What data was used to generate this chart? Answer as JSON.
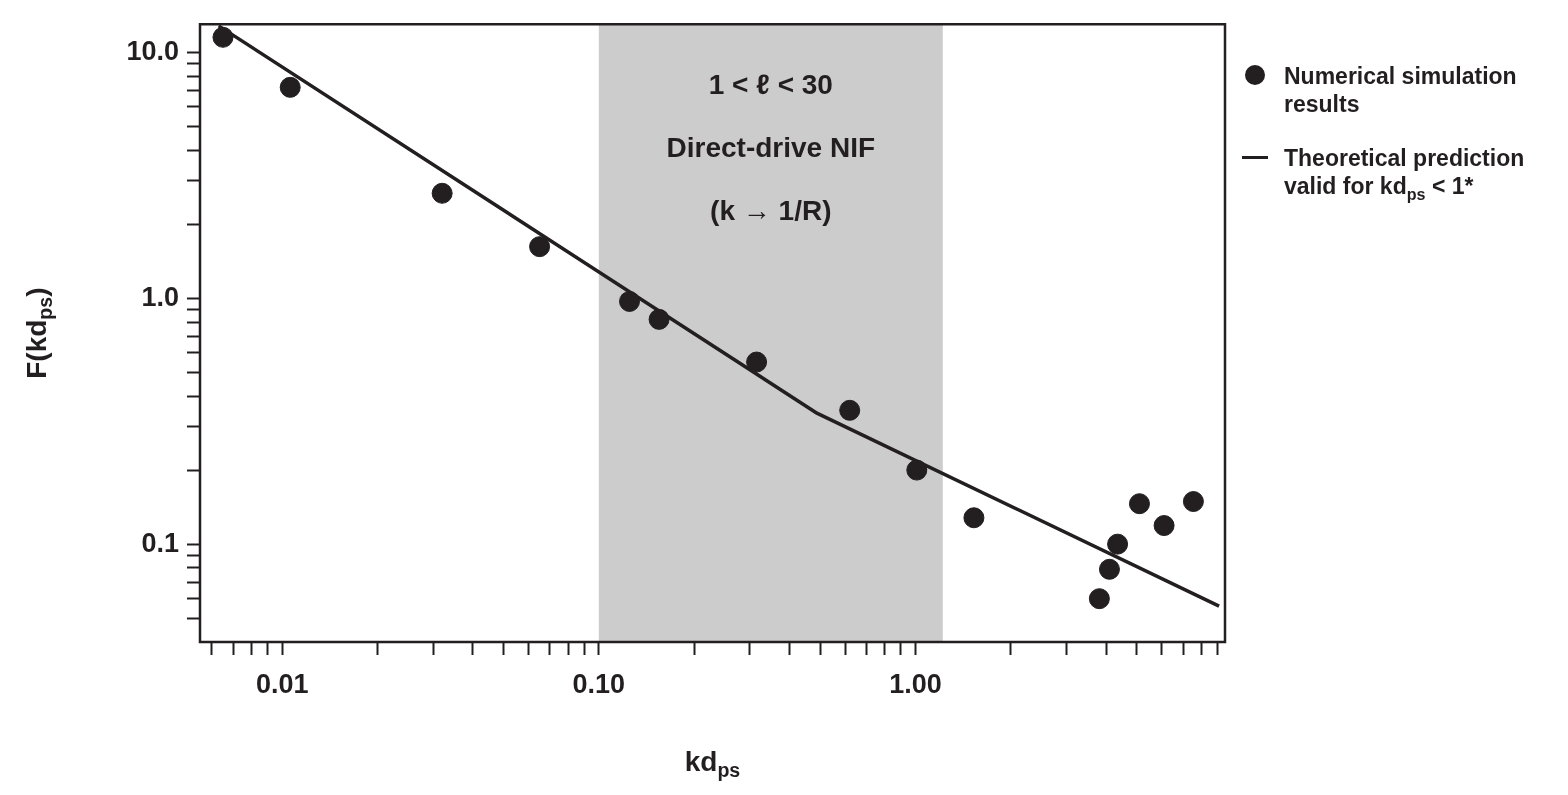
{
  "chart_data": {
    "type": "scatter",
    "xlabel": "kd$_{ps}$",
    "ylabel": "F(kd$_{ps}$)",
    "log": "xy",
    "xlim": [
      0.0055,
      9.5
    ],
    "ylim": [
      0.04,
      13
    ],
    "xticks": [
      {
        "value": 0.006,
        "label": null
      },
      {
        "value": 0.007,
        "label": null
      },
      {
        "value": 0.008,
        "label": null
      },
      {
        "value": 0.009,
        "label": null
      },
      0.01,
      {
        "value": 0.02,
        "label": null
      },
      {
        "value": 0.03,
        "label": null
      },
      {
        "value": 0.04,
        "label": null
      },
      {
        "value": 0.05,
        "label": null
      },
      {
        "value": 0.06,
        "label": null
      },
      {
        "value": 0.07,
        "label": null
      },
      {
        "value": 0.08,
        "label": null
      },
      {
        "value": 0.09,
        "label": null
      },
      {
        "value": 0.1,
        "label": "0.10"
      },
      {
        "value": 0.2,
        "label": null
      },
      {
        "value": 0.3,
        "label": null
      },
      {
        "value": 0.4,
        "label": null
      },
      {
        "value": 0.5,
        "label": null
      },
      {
        "value": 0.6,
        "label": null
      },
      {
        "value": 0.7,
        "label": null
      },
      {
        "value": 0.8,
        "label": null
      },
      {
        "value": 0.9,
        "label": null
      },
      {
        "value": 1,
        "label": "1.00"
      },
      {
        "value": 2,
        "label": null
      },
      {
        "value": 3,
        "label": null
      },
      {
        "value": 4,
        "label": null
      },
      {
        "value": 5,
        "label": null
      },
      {
        "value": 6,
        "label": null
      },
      {
        "value": 7,
        "label": null
      },
      {
        "value": 8,
        "label": null
      },
      {
        "value": 9,
        "label": null
      }
    ],
    "yticks": [
      {
        "value": 0.05,
        "label": null
      },
      {
        "value": 0.06,
        "label": null
      },
      {
        "value": 0.07,
        "label": null
      },
      {
        "value": 0.08,
        "label": null
      },
      {
        "value": 0.09,
        "label": null
      },
      0.1,
      {
        "value": 0.2,
        "label": null
      },
      {
        "value": 0.3,
        "label": null
      },
      {
        "value": 0.4,
        "label": null
      },
      {
        "value": 0.5,
        "label": null
      },
      {
        "value": 0.6,
        "label": null
      },
      {
        "value": 0.7,
        "label": null
      },
      {
        "value": 0.8,
        "label": null
      },
      {
        "value": 0.9,
        "label": null
      },
      {
        "value": 1,
        "label": "1.0"
      },
      {
        "value": 2,
        "label": null
      },
      {
        "value": 3,
        "label": null
      },
      {
        "value": 4,
        "label": null
      },
      {
        "value": 5,
        "label": null
      },
      {
        "value": 6,
        "label": null
      },
      {
        "value": 7,
        "label": null
      },
      {
        "value": 8,
        "label": null
      },
      {
        "value": 9,
        "label": null
      },
      {
        "value": 10,
        "label": "10.0"
      }
    ],
    "legend": "right",
    "grid": false,
    "series": [
      {
        "name": "Numerical simulation results",
        "type": "scatter",
        "marker": "circle",
        "color": "#231f20",
        "x": [
          0.0065,
          0.0106,
          0.032,
          0.065,
          0.125,
          0.155,
          0.315,
          0.62,
          1.01,
          1.53,
          3.81,
          4.1,
          4.35,
          5.1,
          6.1,
          7.55
        ],
        "values": [
          11.5,
          7.2,
          2.67,
          1.62,
          0.97,
          0.82,
          0.55,
          0.35,
          0.2,
          0.128,
          0.06,
          0.079,
          0.1,
          0.146,
          0.119,
          0.149
        ]
      },
      {
        "name": "Theoretical prediction valid for kd$_{ps}$ < 1*",
        "type": "line",
        "marker": "none",
        "line_style": "solid",
        "color": "#231f20",
        "x": [
          0.0063,
          0.49,
          9.1
        ],
        "values": [
          12.8,
          0.34,
          0.056
        ]
      }
    ],
    "bands": [
      {
        "axis": "x",
        "from": 0.1,
        "to": 1.22,
        "color": "#cccccc"
      }
    ],
    "annotations": [
      "1 < ℓ < 30",
      "Direct-drive NIF",
      "(k → 1/R)"
    ]
  }
}
